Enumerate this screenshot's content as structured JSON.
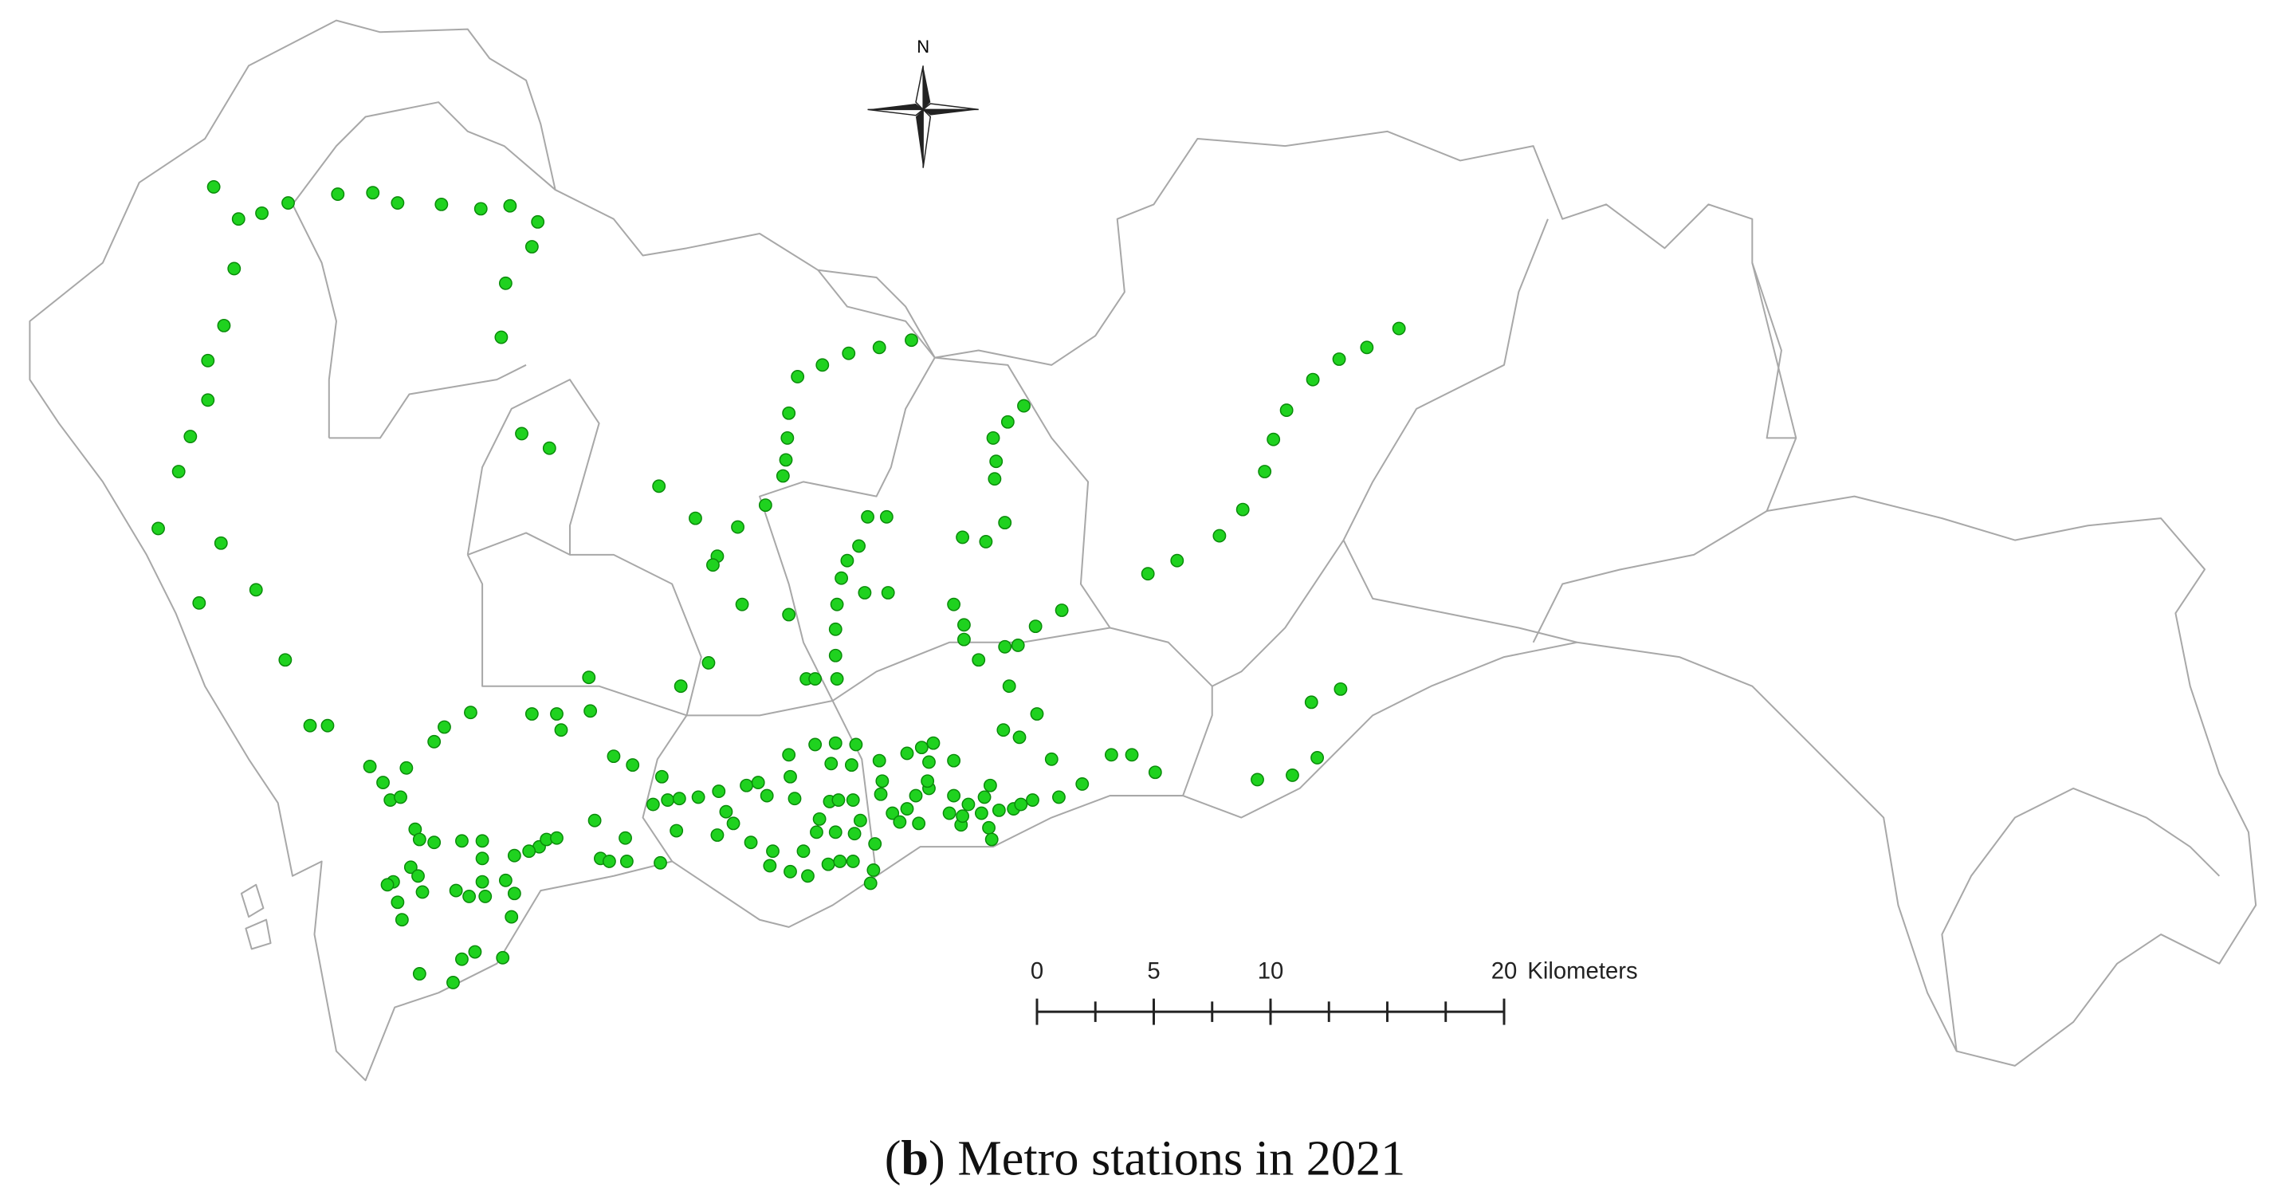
{
  "north_label": "N",
  "scale_bar": {
    "ticks": [
      0,
      5,
      10,
      20
    ],
    "unit": "Kilometers"
  },
  "caption": [
    "(",
    "b",
    ") Metro stations in 2021"
  ]
}
